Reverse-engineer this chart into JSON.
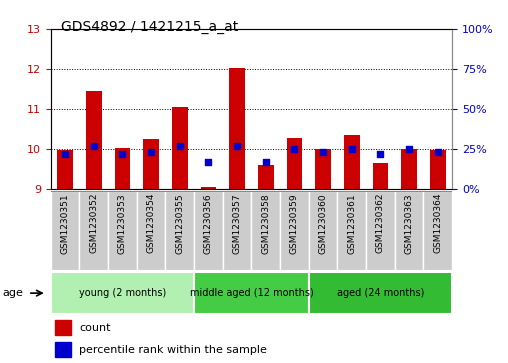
{
  "title": "GDS4892 / 1421215_a_at",
  "samples": [
    "GSM1230351",
    "GSM1230352",
    "GSM1230353",
    "GSM1230354",
    "GSM1230355",
    "GSM1230356",
    "GSM1230357",
    "GSM1230358",
    "GSM1230359",
    "GSM1230360",
    "GSM1230361",
    "GSM1230362",
    "GSM1230363",
    "GSM1230364"
  ],
  "count_values": [
    9.97,
    11.45,
    10.02,
    10.25,
    11.05,
    9.05,
    12.02,
    9.6,
    10.28,
    9.99,
    10.35,
    9.65,
    10.0,
    9.98
  ],
  "percentile_values": [
    22,
    27,
    22,
    23,
    27,
    17,
    27,
    17,
    25,
    23,
    25,
    22,
    25,
    23
  ],
  "ylim_left": [
    9,
    13
  ],
  "ylim_right": [
    0,
    100
  ],
  "yticks_left": [
    9,
    10,
    11,
    12,
    13
  ],
  "yticks_right": [
    0,
    25,
    50,
    75,
    100
  ],
  "groups": [
    {
      "label": "young (2 months)",
      "start": 0,
      "end": 5,
      "color": "#b2f0b2"
    },
    {
      "label": "middle aged (12 months)",
      "start": 5,
      "end": 9,
      "color": "#44cc44"
    },
    {
      "label": "aged (24 months)",
      "start": 9,
      "end": 14,
      "color": "#33bb33"
    }
  ],
  "bar_bottom": 9.0,
  "bar_color": "#cc0000",
  "dot_color": "#0000cc",
  "bar_width": 0.55,
  "background_color": "#ffffff",
  "plot_bg_color": "#ffffff",
  "grid_color": "#000000",
  "tick_color_left": "#cc0000",
  "tick_color_right": "#0000cc",
  "sample_box_color": "#cccccc",
  "legend_items": [
    {
      "label": "count",
      "color": "#cc0000"
    },
    {
      "label": "percentile rank within the sample",
      "color": "#0000cc"
    }
  ]
}
